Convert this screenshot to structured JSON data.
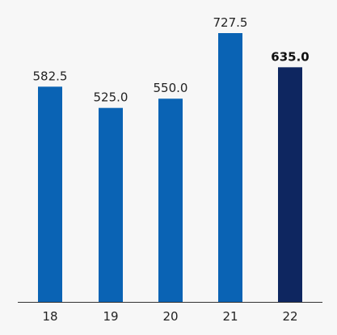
{
  "chart_data": {
    "type": "bar",
    "categories": [
      "18",
      "19",
      "20",
      "21",
      "22"
    ],
    "values": [
      582.5,
      525.0,
      550.0,
      727.5,
      635.0
    ],
    "value_labels": [
      "582.5",
      "525.0",
      "550.0",
      "727.5",
      "635.0"
    ],
    "highlight_index": 4,
    "title": "",
    "xlabel": "",
    "ylabel": "",
    "ylim": [
      0,
      750
    ],
    "grid": false,
    "legend": "none",
    "colors": {
      "bar": "#0a63b4",
      "highlight": "#0e2660",
      "axis": "#333333",
      "background": "#f7f7f7"
    }
  }
}
